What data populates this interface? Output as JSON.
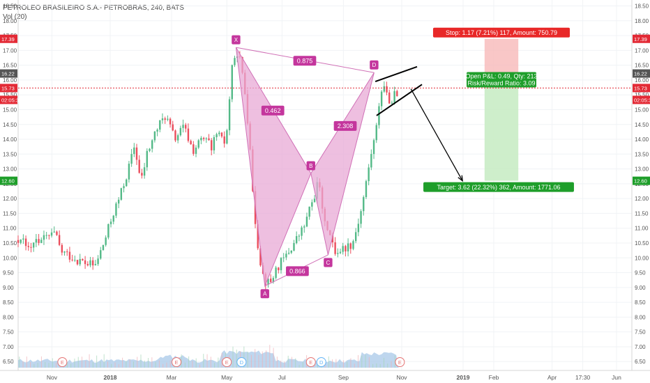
{
  "header": {
    "title": "PETROLEO BRASILEIRO S.A.- PETROBRAS, 240, BATS",
    "volume_label": "Vol (20)"
  },
  "colors": {
    "up": "#53b987",
    "down": "#eb4d5c",
    "pattern_fill": "#e8a9d6",
    "pattern_stroke": "#d070b6",
    "pattern_label": "#c4369d",
    "stop_zone": "#f7b9b9",
    "target_zone": "#c9ecc5",
    "price_line": "#e32a35",
    "volume": "#a8c8e8"
  },
  "chart_data": {
    "type": "candlestick",
    "y_axis": {
      "min": 6.2,
      "max": 18.7,
      "ticks": [
        "6.50",
        "7.00",
        "7.50",
        "8.00",
        "8.50",
        "9.00",
        "9.50",
        "10.00",
        "10.50",
        "11.00",
        "11.50",
        "12.00",
        "12.50",
        "13.00",
        "13.50",
        "14.00",
        "14.50",
        "15.00",
        "15.50",
        "16.00",
        "16.50",
        "17.00",
        "17.50",
        "18.00",
        "18.50"
      ]
    },
    "x_axis": {
      "labels": [
        {
          "label": "Nov",
          "pos": 0.055
        },
        {
          "label": "2018",
          "pos": 0.15
        },
        {
          "label": "Mar",
          "pos": 0.25
        },
        {
          "label": "May",
          "pos": 0.34
        },
        {
          "label": "Jul",
          "pos": 0.43
        },
        {
          "label": "Sep",
          "pos": 0.53
        },
        {
          "label": "Nov",
          "pos": 0.625
        },
        {
          "label": "2019",
          "pos": 0.725
        },
        {
          "label": "Feb",
          "pos": 0.775
        },
        {
          "label": "Apr",
          "pos": 0.87
        },
        {
          "label": "17:30",
          "pos": 0.92
        },
        {
          "label": "Jun",
          "pos": 0.975
        }
      ]
    },
    "price_path": [
      [
        0.0,
        10.6
      ],
      [
        0.02,
        10.5
      ],
      [
        0.04,
        10.6
      ],
      [
        0.06,
        10.8
      ],
      [
        0.07,
        10.2
      ],
      [
        0.09,
        10.0
      ],
      [
        0.11,
        9.8
      ],
      [
        0.125,
        9.7
      ],
      [
        0.14,
        10.5
      ],
      [
        0.155,
        11.5
      ],
      [
        0.165,
        12.0
      ],
      [
        0.18,
        13.0
      ],
      [
        0.19,
        13.8
      ],
      [
        0.2,
        12.5
      ],
      [
        0.21,
        13.5
      ],
      [
        0.225,
        14.3
      ],
      [
        0.24,
        14.8
      ],
      [
        0.255,
        14.0
      ],
      [
        0.27,
        14.4
      ],
      [
        0.285,
        13.6
      ],
      [
        0.3,
        14.0
      ],
      [
        0.315,
        13.8
      ],
      [
        0.325,
        14.2
      ],
      [
        0.335,
        13.8
      ],
      [
        0.342,
        14.5
      ],
      [
        0.348,
        16.5
      ],
      [
        0.355,
        17.1
      ],
      [
        0.362,
        16.6
      ],
      [
        0.37,
        15.5
      ],
      [
        0.378,
        13.8
      ],
      [
        0.385,
        11.5
      ],
      [
        0.392,
        10.2
      ],
      [
        0.4,
        9.3
      ],
      [
        0.41,
        9.1
      ],
      [
        0.42,
        9.6
      ],
      [
        0.435,
        10.0
      ],
      [
        0.45,
        10.5
      ],
      [
        0.465,
        11.0
      ],
      [
        0.478,
        11.8
      ],
      [
        0.49,
        12.6
      ],
      [
        0.498,
        11.5
      ],
      [
        0.507,
        10.8
      ],
      [
        0.515,
        10.2
      ],
      [
        0.53,
        10.3
      ],
      [
        0.545,
        10.5
      ],
      [
        0.558,
        11.5
      ],
      [
        0.567,
        12.5
      ],
      [
        0.575,
        13.5
      ],
      [
        0.583,
        14.2
      ],
      [
        0.59,
        15.6
      ],
      [
        0.598,
        15.8
      ],
      [
        0.606,
        15.3
      ],
      [
        0.613,
        15.5
      ],
      [
        0.62,
        15.2
      ]
    ],
    "harmonic_pattern": {
      "points": [
        {
          "label": "X",
          "x": 0.355,
          "y": 17.1
        },
        {
          "label": "A",
          "x": 0.402,
          "y": 9.05
        },
        {
          "label": "B",
          "x": 0.477,
          "y": 12.85
        },
        {
          "label": "C",
          "x": 0.505,
          "y": 10.1
        },
        {
          "label": "D",
          "x": 0.58,
          "y": 16.25
        }
      ],
      "ratios": [
        {
          "value": "0.462",
          "x": 0.415,
          "y": 14.97
        },
        {
          "value": "0.875",
          "x": 0.467,
          "y": 16.65
        },
        {
          "value": "0.866",
          "x": 0.455,
          "y": 9.55
        },
        {
          "value": "2.308",
          "x": 0.533,
          "y": 14.45
        }
      ]
    },
    "position": {
      "stop_label": "Stop: 1.17 (7.21%) 117, Amount: 750.79",
      "pl_label": "Open P&L: 0.49, Qty: 213",
      "rr_label": "Risk/Reward Ratio: 3.09",
      "target_label": "Target: 3.62 (22.32%) 362, Amount: 1771.06",
      "entry": 16.22,
      "stop": 17.39,
      "target": 12.6,
      "x_start": 0.76,
      "x_end": 0.815
    },
    "triangle": {
      "upper": [
        [
          0.582,
          15.95
        ],
        [
          0.65,
          16.45
        ]
      ],
      "lower": [
        [
          0.584,
          14.8
        ],
        [
          0.658,
          15.85
        ]
      ]
    },
    "arrow": {
      "from": [
        0.64,
        15.7
      ],
      "to": [
        0.724,
        12.6
      ]
    },
    "current_price": 15.73,
    "axis_badges": [
      {
        "text": "17.39",
        "value": 17.39,
        "color": "#e32a35"
      },
      {
        "text": "16.22",
        "value": 16.22,
        "color": "#555555"
      },
      {
        "text": "15.73",
        "value": 15.73,
        "color": "#e32a35"
      },
      {
        "text": "02:05:3",
        "value": 15.33,
        "color": "#e32a35"
      },
      {
        "text": "12.60",
        "value": 12.6,
        "color": "#1e9e2a"
      }
    ],
    "earnings_markers": [
      {
        "text": "E",
        "pos": 0.072
      },
      {
        "text": "E",
        "pos": 0.258
      },
      {
        "text": "E",
        "pos": 0.34
      },
      {
        "text": "D",
        "pos": 0.364
      },
      {
        "text": "E",
        "pos": 0.477
      },
      {
        "text": "D",
        "pos": 0.494
      },
      {
        "text": "E",
        "pos": 0.622
      }
    ]
  }
}
